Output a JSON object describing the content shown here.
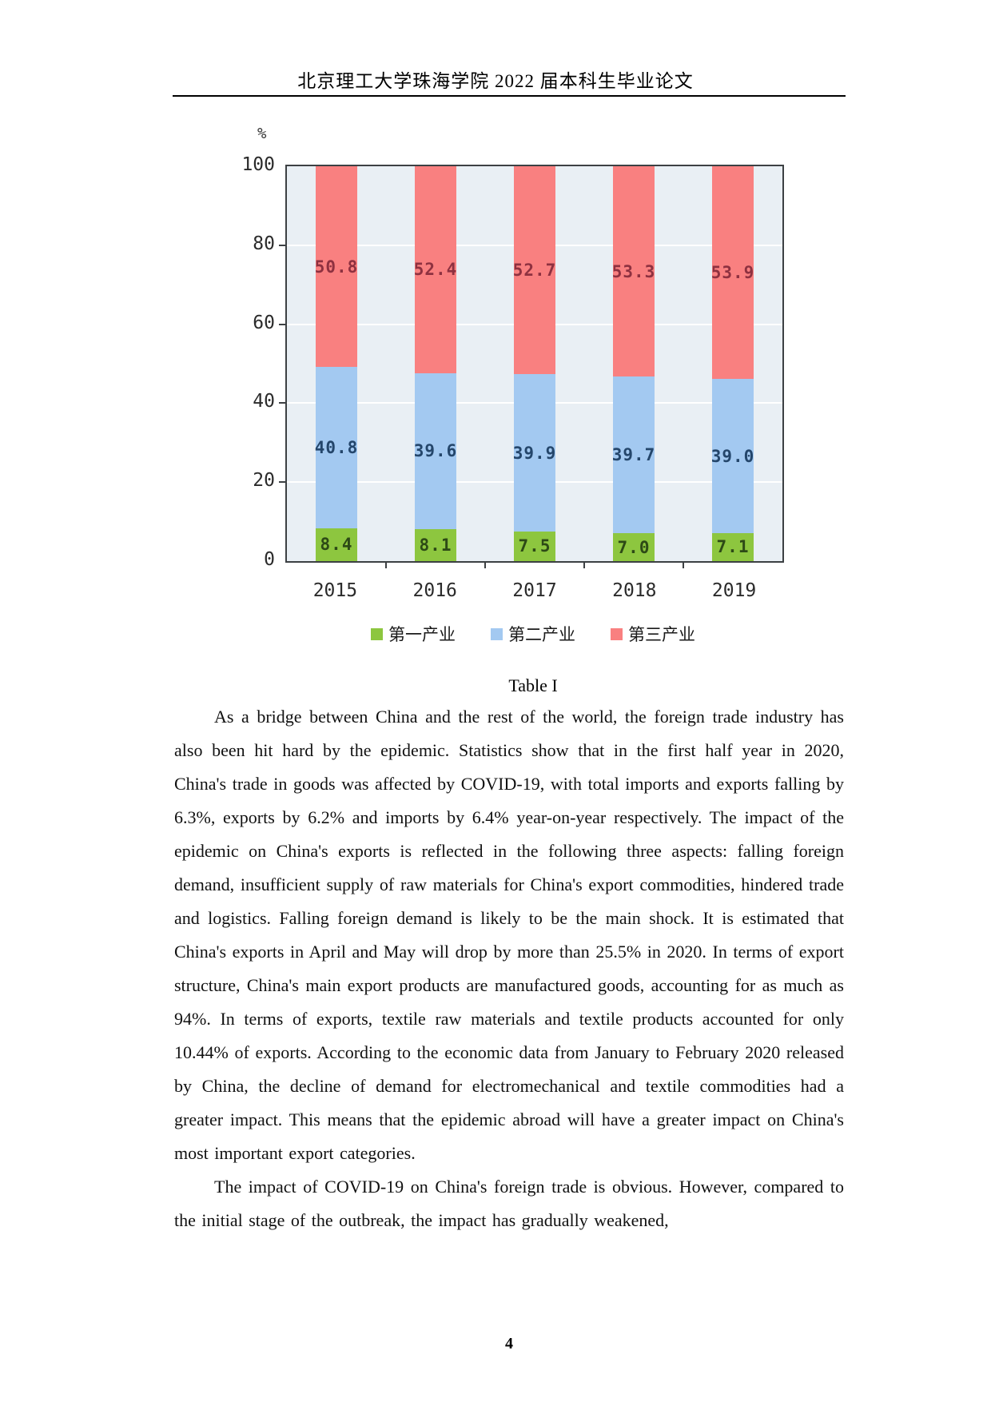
{
  "header": {
    "title": "北京理工大学珠海学院 2022 届本科生毕业论文"
  },
  "chart_data": {
    "type": "bar",
    "stacked": true,
    "title": "",
    "unit_label": "%",
    "categories": [
      "2015",
      "2016",
      "2017",
      "2018",
      "2019"
    ],
    "series": [
      {
        "name": "第一产业",
        "color": "#8dc63f",
        "label_color": "#2d4a16",
        "values": [
          8.4,
          8.1,
          7.5,
          7.0,
          7.1
        ]
      },
      {
        "name": "第二产业",
        "color": "#a3c9f1",
        "label_color": "#24466b",
        "values": [
          40.8,
          39.6,
          39.9,
          39.7,
          39.0
        ]
      },
      {
        "name": "第三产业",
        "color": "#f98080",
        "label_color": "#8e3140",
        "values": [
          50.8,
          52.4,
          52.7,
          53.3,
          53.9
        ]
      }
    ],
    "y_ticks": [
      0,
      20,
      40,
      60,
      80,
      100
    ],
    "ylim": [
      0,
      100
    ],
    "grid": true,
    "grid_color": "#ffffff",
    "plot_background": "#e9eff4",
    "axis_color": "#3c4043",
    "legend_position": "bottom"
  },
  "caption": "Table I",
  "body": {
    "paragraphs": [
      "As a bridge between China and the rest of the world, the foreign trade industry has also been hit hard by the epidemic. Statistics show that in the first half year in 2020, China's trade in goods was affected by COVID-19, with total imports and exports falling by 6.3%, exports by 6.2% and imports by 6.4% year-on-year respectively. The impact of the epidemic on China's exports is reflected in the following three aspects: falling foreign demand, insufficient supply of raw materials for China's export commodities, hindered trade and logistics. Falling foreign demand is likely to be the main shock. It is estimated that China's exports in April and May will drop by more than 25.5% in 2020. In terms of export structure, China's main export products are manufactured goods, accounting for as much as 94%. In terms of exports, textile raw materials and textile products accounted for only 10.44% of exports. According to the economic data from January to February 2020 released by China, the decline of demand for electromechanical and textile commodities had a greater impact. This means that the epidemic abroad will have a greater impact on China's most important export categories.",
      "The impact of COVID-19 on China's foreign trade is obvious. However, compared to the initial stage of the outbreak, the impact has gradually weakened,"
    ]
  },
  "footer": {
    "page_number": "4"
  }
}
